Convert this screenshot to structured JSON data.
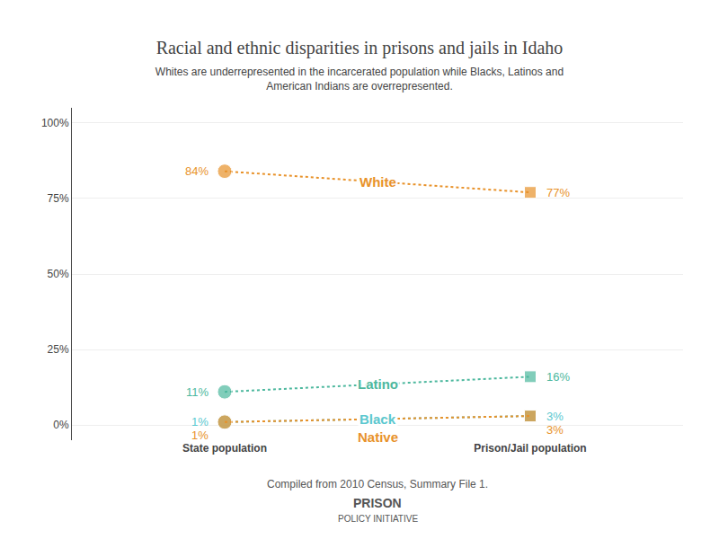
{
  "chart_data": {
    "type": "line",
    "title": "Racial and ethnic disparities in prisons and jails in Idaho",
    "subtitle": "Whites are underrepresented in the incarcerated population while Blacks, Latinos and\nAmerican Indians are overrepresented.",
    "categories": [
      "State population",
      "Prison/Jail population"
    ],
    "series": [
      {
        "name": "White",
        "color": "#e8922a",
        "values": [
          84,
          77
        ],
        "value_labels": [
          "84%",
          "77%"
        ]
      },
      {
        "name": "Latino",
        "color": "#4db89e",
        "values": [
          11,
          16
        ],
        "value_labels": [
          "11%",
          "16%"
        ]
      },
      {
        "name": "Black",
        "color": "#5bc8d0",
        "values": [
          1,
          3
        ],
        "value_labels": [
          "1%",
          "3%"
        ]
      },
      {
        "name": "Native",
        "color": "#e8922a",
        "values": [
          1,
          3
        ],
        "value_labels": [
          "1%",
          "3%"
        ]
      }
    ],
    "ylim": [
      -5,
      105
    ],
    "yticks": [
      {
        "value": 0,
        "label": "0%"
      },
      {
        "value": 25,
        "label": "25%"
      },
      {
        "value": 50,
        "label": "50%"
      },
      {
        "value": 75,
        "label": "75%"
      },
      {
        "value": 100,
        "label": "100%"
      }
    ],
    "grid": true,
    "data_labels": true,
    "line_style": "dotted",
    "annotations": [
      "Compiled from 2010 Census, Summary File 1.",
      "PRISON",
      "POLICY INITIATIVE"
    ]
  }
}
